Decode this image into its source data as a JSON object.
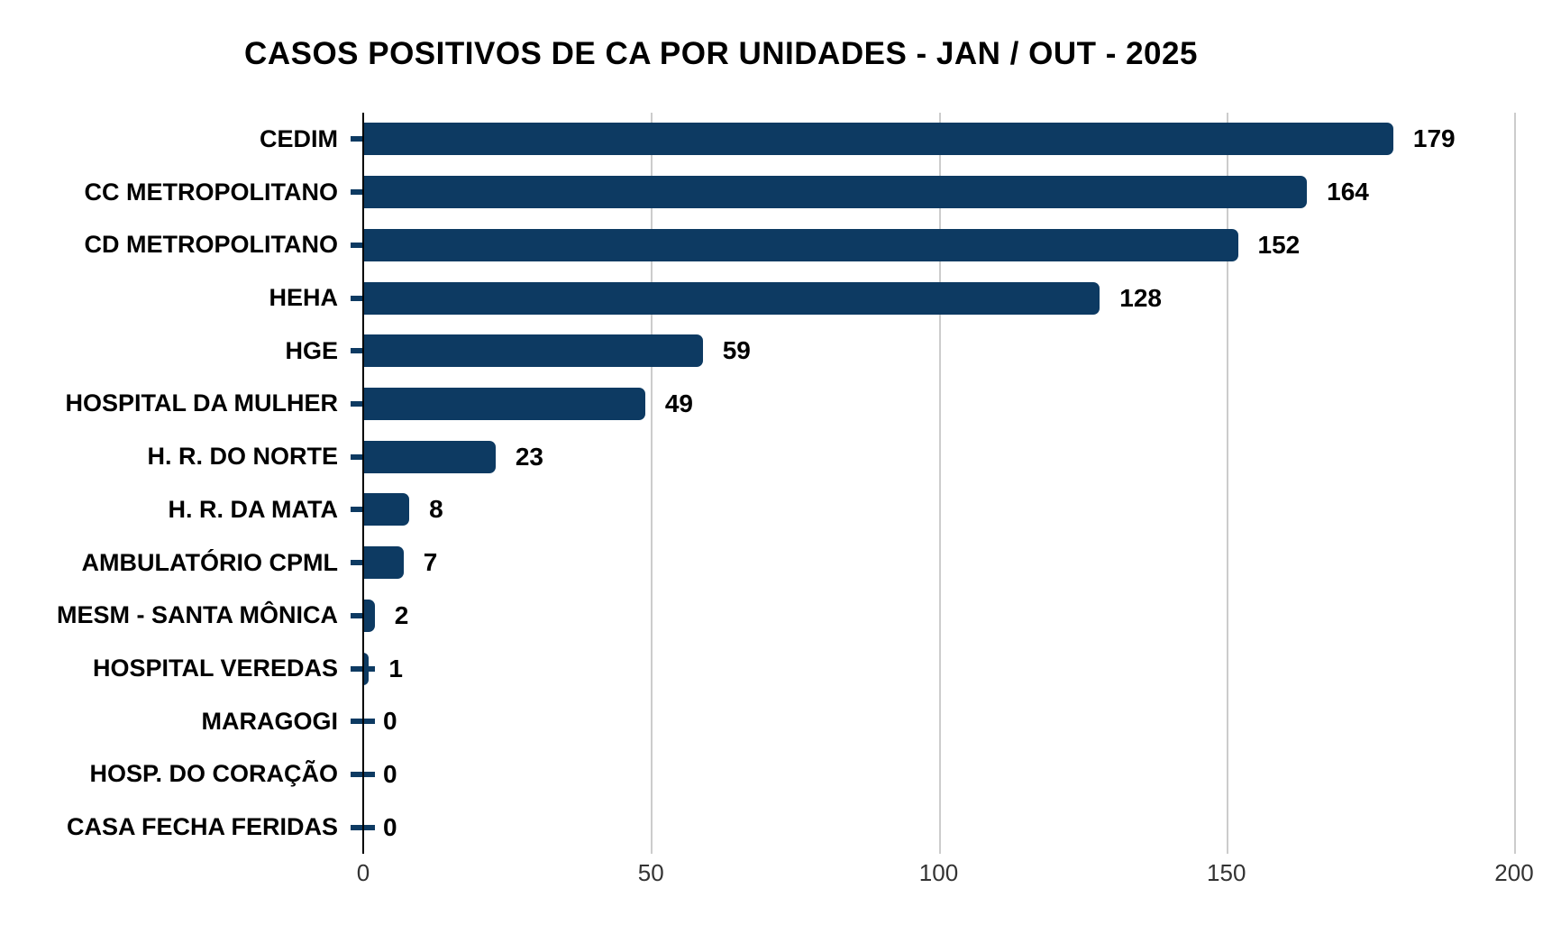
{
  "title": "CASOS POSITIVOS DE CA POR UNIDADES - JAN / OUT - 2025",
  "chart_data": {
    "type": "bar",
    "orientation": "horizontal",
    "title": "CASOS POSITIVOS DE CA POR UNIDADES - JAN / OUT - 2025",
    "categories": [
      "CEDIM",
      "CC METROPOLITANO",
      "CD METROPOLITANO",
      "HEHA",
      "HGE",
      "HOSPITAL DA MULHER",
      "H. R. DO NORTE",
      "H. R. DA MATA",
      "AMBULATÓRIO CPML",
      "MESM - SANTA MÔNICA",
      "HOSPITAL VEREDAS",
      "MARAGOGI",
      "HOSP. DO CORAÇÃO",
      "CASA FECHA FERIDAS"
    ],
    "values": [
      179,
      164,
      152,
      128,
      59,
      49,
      23,
      8,
      7,
      2,
      1,
      0,
      0,
      0
    ],
    "rows": [
      {
        "category": "CEDIM",
        "value": 179
      },
      {
        "category": "CC METROPOLITANO",
        "value": 164
      },
      {
        "category": "CD METROPOLITANO",
        "value": 152
      },
      {
        "category": "HEHA",
        "value": 128
      },
      {
        "category": "HGE",
        "value": 59
      },
      {
        "category": "HOSPITAL DA MULHER",
        "value": 49
      },
      {
        "category": "H. R. DO NORTE",
        "value": 23
      },
      {
        "category": "H. R. DA MATA",
        "value": 8
      },
      {
        "category": "AMBULATÓRIO CPML",
        "value": 7
      },
      {
        "category": "MESM - SANTA MÔNICA",
        "value": 2
      },
      {
        "category": "HOSPITAL VEREDAS",
        "value": 1
      },
      {
        "category": "MARAGOGI",
        "value": 0
      },
      {
        "category": "HOSP. DO CORAÇÃO",
        "value": 0
      },
      {
        "category": "CASA FECHA FERIDAS",
        "value": 0
      }
    ],
    "xlabel": "",
    "ylabel": "",
    "xlim": [
      0,
      200
    ],
    "x_ticks": [
      "0",
      "50",
      "100",
      "150",
      "200"
    ],
    "grid": "vertical-on",
    "legend": "none",
    "colors": {
      "bar": "#0d3a62",
      "gridline": "#cccccc",
      "axis_line": "#000000",
      "title_text": "#000000",
      "category_text": "#000000",
      "value_text": "#000000",
      "tick_text": "#333333",
      "background": "#ffffff"
    }
  }
}
